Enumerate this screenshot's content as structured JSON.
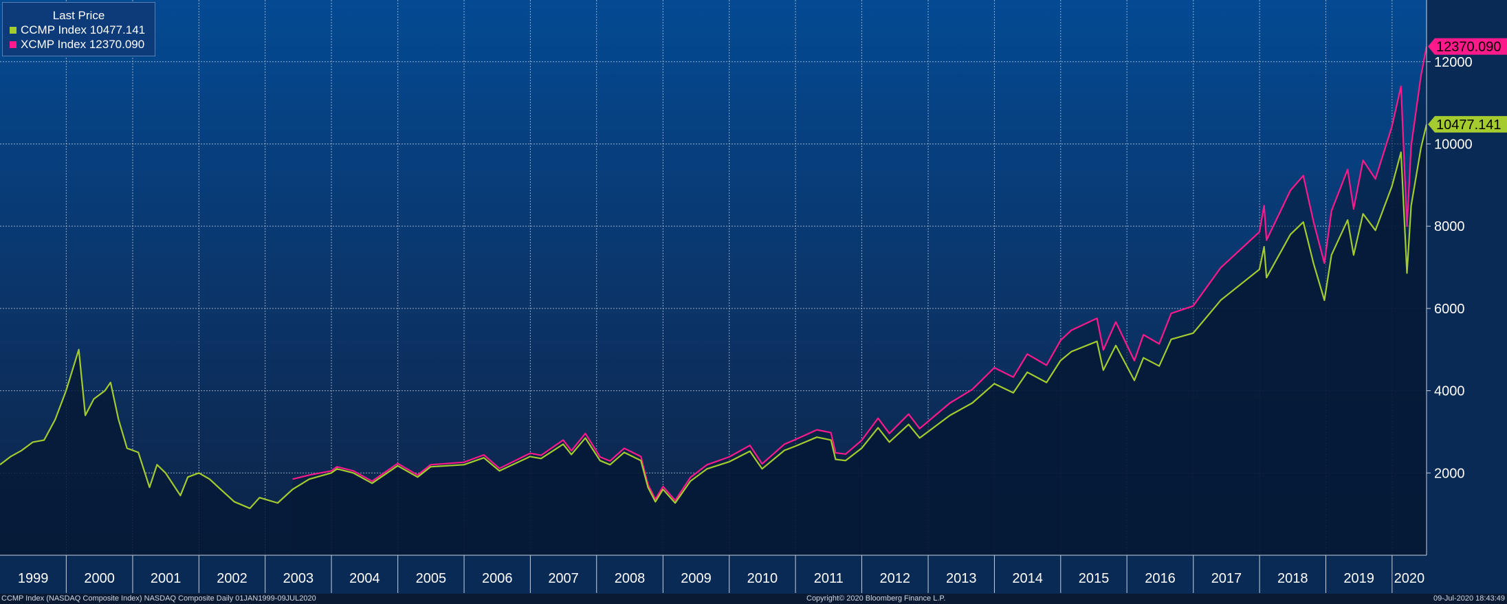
{
  "legend": {
    "title": "Last Price",
    "items": [
      {
        "label": "CCMP Index 10477.141",
        "color": "#a4cc2f"
      },
      {
        "label": "XCMP Index 12370.090",
        "color": "#ff1a8c"
      }
    ]
  },
  "footer": {
    "left": "CCMP Index (NASDAQ Composite Index) NASDAQ Composite  Daily 01JAN1999-09JUL2020",
    "center": "Copyright© 2020 Bloomberg Finance L.P.",
    "right": "09-Jul-2020 18:43:49"
  },
  "chart_data": {
    "type": "line",
    "title": "",
    "xlabel": "",
    "ylabel": "",
    "x_range": [
      "1999-01-01",
      "2020-07-09"
    ],
    "ylim": [
      0,
      13500
    ],
    "y_ticks": [
      2000,
      4000,
      6000,
      8000,
      10000,
      12000
    ],
    "x_tick_labels": [
      "1999",
      "2000",
      "2001",
      "2002",
      "2003",
      "2004",
      "2005",
      "2006",
      "2007",
      "2008",
      "2009",
      "2010",
      "2011",
      "2012",
      "2013",
      "2014",
      "2015",
      "2016",
      "2017",
      "2018",
      "2019",
      "2020"
    ],
    "grid": true,
    "legend_position": "top-left",
    "series": [
      {
        "name": "CCMP Index",
        "color": "#a4cc2f",
        "last_value_label": "10477.141",
        "points": [
          [
            "1999-01-01",
            2200
          ],
          [
            "1999-03-01",
            2400
          ],
          [
            "1999-05-01",
            2550
          ],
          [
            "1999-07-01",
            2750
          ],
          [
            "1999-09-01",
            2800
          ],
          [
            "1999-11-01",
            3300
          ],
          [
            "1999-12-31",
            4000
          ],
          [
            "2000-03-10",
            5000
          ],
          [
            "2000-04-15",
            3400
          ],
          [
            "2000-06-01",
            3800
          ],
          [
            "2000-08-01",
            4000
          ],
          [
            "2000-09-01",
            4200
          ],
          [
            "2000-10-15",
            3300
          ],
          [
            "2000-12-01",
            2600
          ],
          [
            "2001-02-01",
            2500
          ],
          [
            "2001-04-04",
            1650
          ],
          [
            "2001-05-15",
            2200
          ],
          [
            "2001-07-01",
            2000
          ],
          [
            "2001-09-21",
            1450
          ],
          [
            "2001-11-01",
            1900
          ],
          [
            "2002-01-01",
            2000
          ],
          [
            "2002-03-01",
            1850
          ],
          [
            "2002-05-01",
            1600
          ],
          [
            "2002-07-15",
            1300
          ],
          [
            "2002-10-09",
            1140
          ],
          [
            "2002-12-01",
            1400
          ],
          [
            "2003-03-11",
            1270
          ],
          [
            "2003-06-01",
            1600
          ],
          [
            "2003-09-01",
            1850
          ],
          [
            "2003-12-31",
            2000
          ],
          [
            "2004-02-01",
            2100
          ],
          [
            "2004-05-01",
            2000
          ],
          [
            "2004-08-12",
            1750
          ],
          [
            "2004-12-31",
            2175
          ],
          [
            "2005-04-20",
            1900
          ],
          [
            "2005-07-01",
            2150
          ],
          [
            "2005-12-31",
            2200
          ],
          [
            "2006-04-20",
            2370
          ],
          [
            "2006-07-15",
            2050
          ],
          [
            "2006-12-31",
            2400
          ],
          [
            "2007-03-01",
            2350
          ],
          [
            "2007-07-01",
            2700
          ],
          [
            "2007-08-15",
            2450
          ],
          [
            "2007-10-31",
            2850
          ],
          [
            "2008-01-20",
            2300
          ],
          [
            "2008-03-15",
            2200
          ],
          [
            "2008-06-01",
            2500
          ],
          [
            "2008-09-01",
            2300
          ],
          [
            "2008-10-10",
            1650
          ],
          [
            "2008-11-20",
            1300
          ],
          [
            "2009-01-01",
            1600
          ],
          [
            "2009-03-09",
            1270
          ],
          [
            "2009-06-01",
            1800
          ],
          [
            "2009-09-01",
            2100
          ],
          [
            "2009-12-31",
            2270
          ],
          [
            "2010-04-25",
            2530
          ],
          [
            "2010-07-01",
            2100
          ],
          [
            "2010-11-01",
            2550
          ],
          [
            "2010-12-31",
            2650
          ],
          [
            "2011-04-29",
            2870
          ],
          [
            "2011-07-15",
            2800
          ],
          [
            "2011-08-10",
            2330
          ],
          [
            "2011-10-04",
            2300
          ],
          [
            "2011-12-31",
            2600
          ],
          [
            "2012-03-31",
            3100
          ],
          [
            "2012-06-01",
            2750
          ],
          [
            "2012-09-15",
            3180
          ],
          [
            "2012-11-15",
            2850
          ],
          [
            "2012-12-31",
            3000
          ],
          [
            "2013-05-01",
            3400
          ],
          [
            "2013-09-01",
            3700
          ],
          [
            "2013-12-31",
            4170
          ],
          [
            "2014-04-15",
            3950
          ],
          [
            "2014-07-01",
            4450
          ],
          [
            "2014-10-15",
            4200
          ],
          [
            "2014-12-31",
            4730
          ],
          [
            "2015-03-01",
            4950
          ],
          [
            "2015-07-20",
            5200
          ],
          [
            "2015-08-24",
            4500
          ],
          [
            "2015-11-01",
            5100
          ],
          [
            "2016-02-11",
            4250
          ],
          [
            "2016-04-01",
            4800
          ],
          [
            "2016-06-27",
            4600
          ],
          [
            "2016-09-01",
            5250
          ],
          [
            "2016-12-31",
            5400
          ],
          [
            "2017-06-01",
            6200
          ],
          [
            "2017-12-31",
            6950
          ],
          [
            "2018-01-26",
            7500
          ],
          [
            "2018-02-08",
            6750
          ],
          [
            "2018-06-20",
            7800
          ],
          [
            "2018-08-30",
            8100
          ],
          [
            "2018-10-25",
            7100
          ],
          [
            "2018-12-24",
            6200
          ],
          [
            "2019-02-01",
            7300
          ],
          [
            "2019-05-01",
            8150
          ],
          [
            "2019-06-03",
            7300
          ],
          [
            "2019-07-25",
            8300
          ],
          [
            "2019-10-01",
            7900
          ],
          [
            "2019-12-31",
            8970
          ],
          [
            "2020-02-19",
            9800
          ],
          [
            "2020-03-23",
            6860
          ],
          [
            "2020-04-15",
            8500
          ],
          [
            "2020-06-08",
            9900
          ],
          [
            "2020-07-09",
            10477
          ]
        ]
      },
      {
        "name": "XCMP Index",
        "color": "#ff1a8c",
        "last_value_label": "12370.090",
        "points": [
          [
            "2003-06-01",
            1850
          ],
          [
            "2003-09-01",
            1950
          ],
          [
            "2003-12-31",
            2050
          ],
          [
            "2004-02-01",
            2150
          ],
          [
            "2004-05-01",
            2050
          ],
          [
            "2004-08-12",
            1800
          ],
          [
            "2004-12-31",
            2230
          ],
          [
            "2005-04-20",
            1950
          ],
          [
            "2005-07-01",
            2200
          ],
          [
            "2005-12-31",
            2260
          ],
          [
            "2006-04-20",
            2440
          ],
          [
            "2006-07-15",
            2110
          ],
          [
            "2006-12-31",
            2480
          ],
          [
            "2007-03-01",
            2430
          ],
          [
            "2007-07-01",
            2800
          ],
          [
            "2007-08-15",
            2540
          ],
          [
            "2007-10-31",
            2960
          ],
          [
            "2008-01-20",
            2390
          ],
          [
            "2008-03-15",
            2290
          ],
          [
            "2008-06-01",
            2600
          ],
          [
            "2008-09-01",
            2400
          ],
          [
            "2008-10-10",
            1720
          ],
          [
            "2008-11-20",
            1360
          ],
          [
            "2009-01-01",
            1670
          ],
          [
            "2009-03-09",
            1330
          ],
          [
            "2009-06-01",
            1890
          ],
          [
            "2009-09-01",
            2200
          ],
          [
            "2009-12-31",
            2390
          ],
          [
            "2010-04-25",
            2670
          ],
          [
            "2010-07-01",
            2220
          ],
          [
            "2010-11-01",
            2700
          ],
          [
            "2010-12-31",
            2810
          ],
          [
            "2011-04-29",
            3050
          ],
          [
            "2011-07-15",
            2980
          ],
          [
            "2011-08-10",
            2490
          ],
          [
            "2011-10-04",
            2460
          ],
          [
            "2011-12-31",
            2790
          ],
          [
            "2012-03-31",
            3330
          ],
          [
            "2012-06-01",
            2960
          ],
          [
            "2012-09-15",
            3430
          ],
          [
            "2012-11-15",
            3080
          ],
          [
            "2012-12-31",
            3250
          ],
          [
            "2013-05-01",
            3700
          ],
          [
            "2013-09-01",
            4030
          ],
          [
            "2013-12-31",
            4560
          ],
          [
            "2014-04-15",
            4330
          ],
          [
            "2014-07-01",
            4890
          ],
          [
            "2014-10-15",
            4620
          ],
          [
            "2014-12-31",
            5220
          ],
          [
            "2015-03-01",
            5470
          ],
          [
            "2015-07-20",
            5760
          ],
          [
            "2015-08-24",
            4990
          ],
          [
            "2015-11-01",
            5670
          ],
          [
            "2016-02-11",
            4730
          ],
          [
            "2016-04-01",
            5360
          ],
          [
            "2016-06-27",
            5140
          ],
          [
            "2016-09-01",
            5880
          ],
          [
            "2016-12-31",
            6060
          ],
          [
            "2017-06-01",
            6990
          ],
          [
            "2017-12-31",
            7860
          ],
          [
            "2018-01-26",
            8500
          ],
          [
            "2018-02-08",
            7660
          ],
          [
            "2018-06-20",
            8870
          ],
          [
            "2018-08-30",
            9230
          ],
          [
            "2018-10-25",
            8110
          ],
          [
            "2018-12-24",
            7100
          ],
          [
            "2019-02-01",
            8370
          ],
          [
            "2019-05-01",
            9380
          ],
          [
            "2019-06-03",
            8420
          ],
          [
            "2019-07-25",
            9600
          ],
          [
            "2019-10-01",
            9150
          ],
          [
            "2019-12-31",
            10420
          ],
          [
            "2020-02-19",
            11400
          ],
          [
            "2020-03-23",
            8000
          ],
          [
            "2020-04-15",
            9950
          ],
          [
            "2020-06-08",
            11650
          ],
          [
            "2020-07-09",
            12370
          ]
        ]
      }
    ]
  }
}
